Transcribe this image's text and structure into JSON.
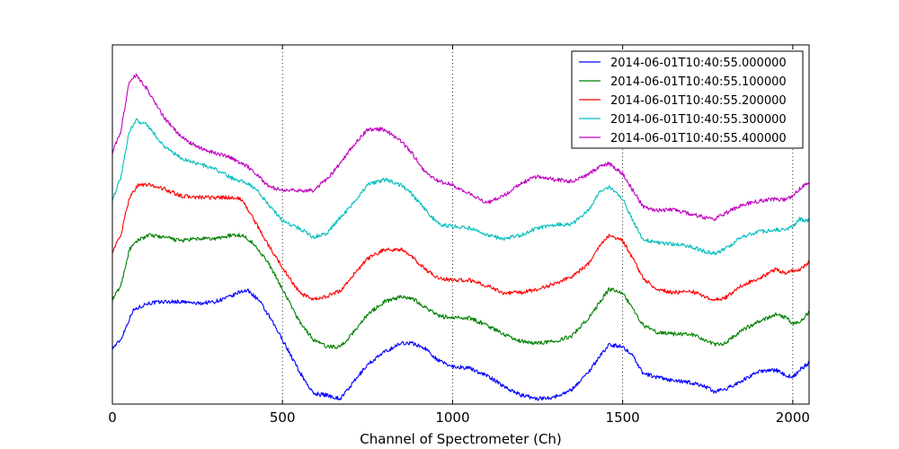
{
  "chart_data": {
    "type": "line",
    "title": "",
    "xlabel": "Channel of Spectrometer (Ch)",
    "ylabel": "",
    "xlim": [
      0,
      2048
    ],
    "ylim": [
      0,
      100
    ],
    "xticks": [
      0,
      500,
      1000,
      1500,
      2000
    ],
    "xtick_labels": [
      "0",
      "500",
      "1000",
      "1500",
      "2000"
    ],
    "yticks_visible": false,
    "grid": "vertical dotted at x ticks",
    "legend_position": "top-right",
    "series": [
      {
        "name": "2014-06-01T10:40:55.000000",
        "color": "#0000ff",
        "points": [
          [
            0,
            15.5
          ],
          [
            25,
            18
          ],
          [
            60,
            26
          ],
          [
            100,
            28
          ],
          [
            150,
            28.5
          ],
          [
            200,
            28.5
          ],
          [
            250,
            28
          ],
          [
            300,
            28.5
          ],
          [
            350,
            30
          ],
          [
            380,
            31.5
          ],
          [
            400,
            31.5
          ],
          [
            430,
            29
          ],
          [
            460,
            24.5
          ],
          [
            500,
            18
          ],
          [
            550,
            9
          ],
          [
            590,
            3
          ],
          [
            630,
            2.5
          ],
          [
            670,
            1.5
          ],
          [
            700,
            5
          ],
          [
            750,
            11
          ],
          [
            800,
            14.5
          ],
          [
            850,
            17
          ],
          [
            880,
            17
          ],
          [
            920,
            15.5
          ],
          [
            960,
            12
          ],
          [
            1000,
            10.5
          ],
          [
            1050,
            10
          ],
          [
            1100,
            8
          ],
          [
            1150,
            5
          ],
          [
            1200,
            2.5
          ],
          [
            1250,
            1.5
          ],
          [
            1300,
            2
          ],
          [
            1350,
            4
          ],
          [
            1400,
            9
          ],
          [
            1430,
            13
          ],
          [
            1460,
            16.5
          ],
          [
            1500,
            16
          ],
          [
            1530,
            13.5
          ],
          [
            1560,
            8.5
          ],
          [
            1600,
            7.5
          ],
          [
            1650,
            6.5
          ],
          [
            1700,
            6
          ],
          [
            1740,
            5
          ],
          [
            1770,
            3.5
          ],
          [
            1800,
            4
          ],
          [
            1850,
            6.5
          ],
          [
            1900,
            9
          ],
          [
            1950,
            9.5
          ],
          [
            1980,
            8
          ],
          [
            2000,
            7.5
          ],
          [
            2020,
            9.5
          ],
          [
            2048,
            11.5
          ]
        ]
      },
      {
        "name": "2014-06-01T10:40:55.100000",
        "color": "#008000",
        "points": [
          [
            0,
            29
          ],
          [
            25,
            33
          ],
          [
            50,
            43
          ],
          [
            80,
            46
          ],
          [
            110,
            47
          ],
          [
            150,
            46.5
          ],
          [
            200,
            45.5
          ],
          [
            250,
            46
          ],
          [
            300,
            46
          ],
          [
            350,
            47
          ],
          [
            380,
            47
          ],
          [
            400,
            46
          ],
          [
            430,
            43
          ],
          [
            460,
            39
          ],
          [
            500,
            32
          ],
          [
            550,
            23
          ],
          [
            590,
            18
          ],
          [
            630,
            16
          ],
          [
            670,
            16
          ],
          [
            700,
            19
          ],
          [
            750,
            25
          ],
          [
            800,
            28.5
          ],
          [
            850,
            30
          ],
          [
            880,
            29.5
          ],
          [
            920,
            27
          ],
          [
            960,
            24.5
          ],
          [
            1000,
            24
          ],
          [
            1050,
            24
          ],
          [
            1100,
            22
          ],
          [
            1150,
            19.5
          ],
          [
            1200,
            17.5
          ],
          [
            1250,
            17
          ],
          [
            1300,
            17.5
          ],
          [
            1350,
            19
          ],
          [
            1400,
            24
          ],
          [
            1430,
            28
          ],
          [
            1460,
            32
          ],
          [
            1500,
            31
          ],
          [
            1530,
            26.5
          ],
          [
            1560,
            22
          ],
          [
            1600,
            20
          ],
          [
            1650,
            19.5
          ],
          [
            1700,
            19.5
          ],
          [
            1740,
            18
          ],
          [
            1770,
            16.5
          ],
          [
            1800,
            17
          ],
          [
            1850,
            20.5
          ],
          [
            1900,
            23
          ],
          [
            1950,
            25
          ],
          [
            1980,
            24
          ],
          [
            2000,
            22.5
          ],
          [
            2020,
            23
          ],
          [
            2048,
            25.5
          ]
        ]
      },
      {
        "name": "2014-06-01T10:40:55.200000",
        "color": "#ff0000",
        "points": [
          [
            0,
            42.5
          ],
          [
            25,
            47
          ],
          [
            50,
            57.5
          ],
          [
            75,
            61
          ],
          [
            110,
            61
          ],
          [
            150,
            60
          ],
          [
            200,
            58
          ],
          [
            250,
            57.5
          ],
          [
            300,
            57.5
          ],
          [
            350,
            57.5
          ],
          [
            380,
            57
          ],
          [
            400,
            54
          ],
          [
            430,
            49
          ],
          [
            460,
            44
          ],
          [
            500,
            38
          ],
          [
            550,
            31
          ],
          [
            590,
            29
          ],
          [
            630,
            30
          ],
          [
            670,
            31.5
          ],
          [
            700,
            35
          ],
          [
            750,
            40.5
          ],
          [
            800,
            43
          ],
          [
            850,
            43
          ],
          [
            880,
            41
          ],
          [
            920,
            37.5
          ],
          [
            960,
            35
          ],
          [
            1000,
            34.5
          ],
          [
            1050,
            34.5
          ],
          [
            1100,
            33
          ],
          [
            1150,
            31
          ],
          [
            1200,
            31
          ],
          [
            1250,
            32
          ],
          [
            1300,
            33.5
          ],
          [
            1350,
            35.5
          ],
          [
            1400,
            39
          ],
          [
            1430,
            44
          ],
          [
            1460,
            47
          ],
          [
            1500,
            45.5
          ],
          [
            1530,
            40.5
          ],
          [
            1560,
            35
          ],
          [
            1600,
            32
          ],
          [
            1650,
            31
          ],
          [
            1700,
            31.5
          ],
          [
            1740,
            30
          ],
          [
            1770,
            29
          ],
          [
            1800,
            29.5
          ],
          [
            1850,
            33
          ],
          [
            1900,
            35
          ],
          [
            1950,
            37.5
          ],
          [
            1980,
            36.5
          ],
          [
            2000,
            37
          ],
          [
            2020,
            37.5
          ],
          [
            2048,
            39.5
          ]
        ]
      },
      {
        "name": "2014-06-01T10:40:55.300000",
        "color": "#00bfbf",
        "points": [
          [
            0,
            57
          ],
          [
            25,
            63
          ],
          [
            50,
            76
          ],
          [
            70,
            79
          ],
          [
            100,
            78
          ],
          [
            150,
            72
          ],
          [
            200,
            68.5
          ],
          [
            250,
            67
          ],
          [
            300,
            65.5
          ],
          [
            350,
            63
          ],
          [
            380,
            62
          ],
          [
            400,
            61.5
          ],
          [
            430,
            59
          ],
          [
            460,
            55.5
          ],
          [
            500,
            51
          ],
          [
            550,
            49
          ],
          [
            590,
            46.5
          ],
          [
            630,
            47.5
          ],
          [
            670,
            52
          ],
          [
            700,
            55
          ],
          [
            750,
            61
          ],
          [
            800,
            62.5
          ],
          [
            850,
            61
          ],
          [
            880,
            58.5
          ],
          [
            920,
            54
          ],
          [
            960,
            50
          ],
          [
            1000,
            49.5
          ],
          [
            1050,
            49
          ],
          [
            1100,
            47
          ],
          [
            1150,
            46
          ],
          [
            1200,
            47
          ],
          [
            1250,
            49
          ],
          [
            1300,
            50
          ],
          [
            1350,
            50
          ],
          [
            1400,
            54
          ],
          [
            1430,
            59
          ],
          [
            1460,
            60.5
          ],
          [
            1500,
            57
          ],
          [
            1530,
            51
          ],
          [
            1560,
            46
          ],
          [
            1600,
            45
          ],
          [
            1650,
            44.5
          ],
          [
            1700,
            44
          ],
          [
            1740,
            42.5
          ],
          [
            1770,
            42
          ],
          [
            1800,
            43
          ],
          [
            1850,
            46.5
          ],
          [
            1900,
            48
          ],
          [
            1950,
            48.5
          ],
          [
            1980,
            48.5
          ],
          [
            2000,
            49.5
          ],
          [
            2020,
            51.5
          ],
          [
            2048,
            51
          ]
        ]
      },
      {
        "name": "2014-06-01T10:40:55.400000",
        "color": "#bf00bf",
        "points": [
          [
            0,
            70
          ],
          [
            25,
            76
          ],
          [
            50,
            90
          ],
          [
            70,
            91.5
          ],
          [
            100,
            88
          ],
          [
            150,
            80
          ],
          [
            200,
            74.5
          ],
          [
            250,
            71.5
          ],
          [
            300,
            70
          ],
          [
            350,
            68.5
          ],
          [
            380,
            67
          ],
          [
            400,
            66
          ],
          [
            430,
            63.5
          ],
          [
            460,
            60.5
          ],
          [
            500,
            59.5
          ],
          [
            550,
            59.5
          ],
          [
            590,
            59.5
          ],
          [
            630,
            62.5
          ],
          [
            670,
            67
          ],
          [
            700,
            71
          ],
          [
            750,
            76.5
          ],
          [
            800,
            76.5
          ],
          [
            850,
            73
          ],
          [
            880,
            70
          ],
          [
            920,
            64.5
          ],
          [
            960,
            62
          ],
          [
            1000,
            61
          ],
          [
            1050,
            58.5
          ],
          [
            1100,
            56
          ],
          [
            1150,
            58
          ],
          [
            1200,
            61.5
          ],
          [
            1250,
            63.5
          ],
          [
            1300,
            62.5
          ],
          [
            1350,
            62
          ],
          [
            1400,
            64
          ],
          [
            1430,
            66
          ],
          [
            1460,
            67
          ],
          [
            1500,
            64
          ],
          [
            1530,
            59.5
          ],
          [
            1560,
            55
          ],
          [
            1600,
            54
          ],
          [
            1650,
            54
          ],
          [
            1700,
            53
          ],
          [
            1740,
            52
          ],
          [
            1770,
            51.5
          ],
          [
            1800,
            53
          ],
          [
            1850,
            55.5
          ],
          [
            1900,
            56.5
          ],
          [
            1950,
            57
          ],
          [
            1980,
            57
          ],
          [
            2000,
            58
          ],
          [
            2020,
            60
          ],
          [
            2048,
            62
          ]
        ]
      }
    ]
  }
}
